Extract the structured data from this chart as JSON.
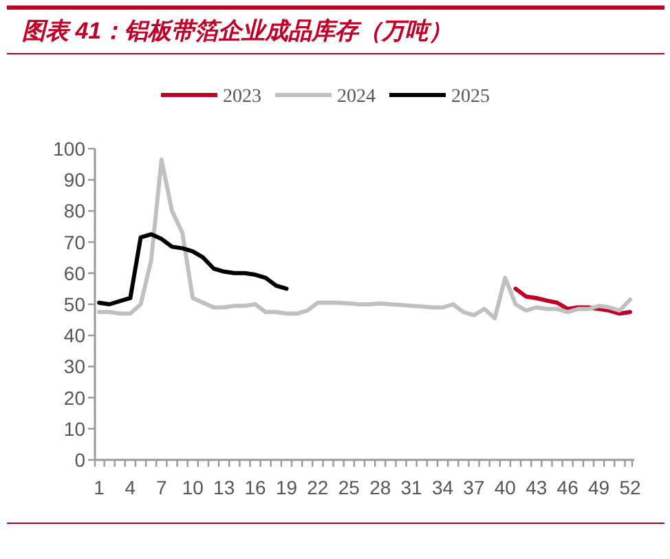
{
  "chart_data": {
    "type": "line",
    "title": "图表 41：铝板带箔企业成品库存（万吨）",
    "categories": [
      "1",
      null,
      null,
      "4",
      null,
      null,
      "7",
      null,
      null,
      "10",
      null,
      null,
      "13",
      null,
      null,
      "16",
      null,
      null,
      "19",
      null,
      null,
      "22",
      null,
      null,
      "25",
      null,
      null,
      "28",
      null,
      null,
      "31",
      null,
      null,
      "34",
      null,
      null,
      "37",
      null,
      null,
      "40",
      null,
      null,
      "43",
      null,
      null,
      "46",
      null,
      null,
      "49",
      null,
      null,
      "52"
    ],
    "ylim": [
      0,
      100
    ],
    "yticks": [
      0,
      10,
      20,
      30,
      40,
      50,
      60,
      70,
      80,
      90,
      100
    ],
    "grid": false,
    "legend": "top",
    "marker": "none",
    "line_style": "solid",
    "series": [
      {
        "name": "2023",
        "color": "#c00026",
        "values": [
          null,
          null,
          null,
          null,
          null,
          null,
          null,
          null,
          null,
          null,
          null,
          null,
          null,
          null,
          null,
          null,
          null,
          null,
          null,
          null,
          null,
          null,
          null,
          null,
          null,
          null,
          null,
          null,
          null,
          null,
          null,
          null,
          null,
          null,
          null,
          null,
          null,
          null,
          null,
          null,
          55,
          52.5,
          52,
          51.2,
          50.5,
          48.5,
          49,
          49,
          48.5,
          48,
          47,
          47.5
        ]
      },
      {
        "name": "2024",
        "color": "#c0c0c0",
        "values": [
          47.5,
          47.5,
          47,
          47,
          50,
          64,
          96.5,
          80,
          73,
          52,
          50.5,
          49,
          49,
          49.5,
          49.5,
          50,
          47.5,
          47.5,
          47,
          47,
          48,
          50.5,
          50.5,
          50.5,
          50.3,
          50,
          50,
          50.3,
          50,
          49.8,
          49.5,
          49.3,
          49,
          49,
          50,
          47.5,
          46.5,
          48.5,
          45.5,
          58.5,
          50,
          48,
          49,
          48.5,
          48.5,
          47.5,
          48.5,
          48.5,
          49.5,
          49,
          48,
          51.5
        ]
      },
      {
        "name": "2025",
        "color": "#000000",
        "values": [
          50.5,
          50,
          51,
          52,
          71.5,
          72.5,
          71,
          68.5,
          68,
          67,
          65,
          61.5,
          60.5,
          60,
          60,
          59.5,
          58.5,
          56,
          55,
          null,
          null,
          null,
          null,
          null,
          null,
          null,
          null,
          null,
          null,
          null,
          null,
          null,
          null,
          null,
          null,
          null,
          null,
          null,
          null,
          null,
          null,
          null,
          null,
          null,
          null,
          null,
          null,
          null,
          null,
          null,
          null,
          null
        ]
      }
    ]
  }
}
